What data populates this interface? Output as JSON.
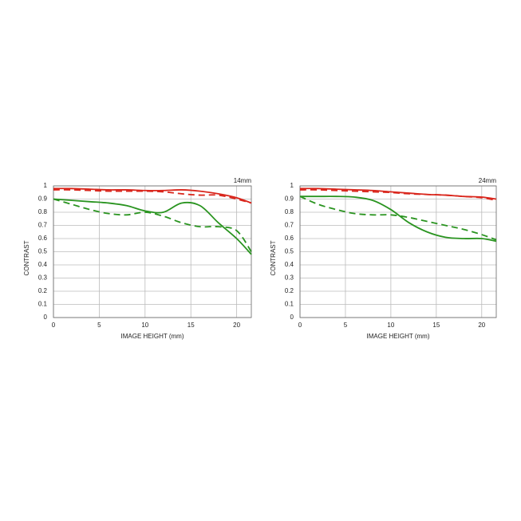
{
  "chart_data": [
    {
      "type": "line",
      "title": "14mm",
      "xlabel": "IMAGE HEIGHT (mm)",
      "ylabel": "CONTRAST",
      "x": [
        0,
        2,
        4,
        6,
        8,
        10,
        12,
        14,
        16,
        18,
        20,
        21.6
      ],
      "xlim": [
        0,
        21.6
      ],
      "xticks": [
        0,
        5,
        10,
        15,
        20
      ],
      "ylim": [
        0,
        1
      ],
      "yticks": [
        0,
        0.1,
        0.2,
        0.3,
        0.4,
        0.5,
        0.6,
        0.7,
        0.8,
        0.9,
        1
      ],
      "grid": true,
      "series": [
        {
          "color": "#d9261c",
          "style": "solid",
          "values": [
            0.98,
            0.98,
            0.975,
            0.97,
            0.97,
            0.965,
            0.965,
            0.97,
            0.96,
            0.94,
            0.91,
            0.87
          ]
        },
        {
          "color": "#d9261c",
          "style": "dashed",
          "values": [
            0.97,
            0.97,
            0.965,
            0.96,
            0.96,
            0.96,
            0.955,
            0.94,
            0.93,
            0.93,
            0.9,
            0.87
          ]
        },
        {
          "color": "#2a9420",
          "style": "solid",
          "values": [
            0.9,
            0.89,
            0.88,
            0.87,
            0.85,
            0.81,
            0.8,
            0.87,
            0.85,
            0.72,
            0.6,
            0.48
          ]
        },
        {
          "color": "#2a9420",
          "style": "dashed",
          "values": [
            0.9,
            0.86,
            0.82,
            0.79,
            0.78,
            0.8,
            0.77,
            0.72,
            0.69,
            0.69,
            0.66,
            0.5
          ]
        }
      ]
    },
    {
      "type": "line",
      "title": "24mm",
      "xlabel": "IMAGE HEIGHT (mm)",
      "ylabel": "CONTRAST",
      "x": [
        0,
        2,
        4,
        6,
        8,
        10,
        12,
        14,
        16,
        18,
        20,
        21.6
      ],
      "xlim": [
        0,
        21.6
      ],
      "xticks": [
        0,
        5,
        10,
        15,
        20
      ],
      "ylim": [
        0,
        1
      ],
      "yticks": [
        0,
        0.1,
        0.2,
        0.3,
        0.4,
        0.5,
        0.6,
        0.7,
        0.8,
        0.9,
        1
      ],
      "grid": true,
      "series": [
        {
          "color": "#d9261c",
          "style": "solid",
          "values": [
            0.98,
            0.98,
            0.975,
            0.97,
            0.965,
            0.955,
            0.945,
            0.935,
            0.93,
            0.92,
            0.915,
            0.9
          ]
        },
        {
          "color": "#d9261c",
          "style": "dashed",
          "values": [
            0.97,
            0.97,
            0.965,
            0.96,
            0.955,
            0.95,
            0.94,
            0.935,
            0.93,
            0.92,
            0.91,
            0.89
          ]
        },
        {
          "color": "#2a9420",
          "style": "solid",
          "values": [
            0.92,
            0.92,
            0.92,
            0.915,
            0.89,
            0.82,
            0.72,
            0.65,
            0.61,
            0.6,
            0.6,
            0.58
          ]
        },
        {
          "color": "#2a9420",
          "style": "dashed",
          "values": [
            0.92,
            0.86,
            0.82,
            0.79,
            0.78,
            0.78,
            0.76,
            0.73,
            0.7,
            0.67,
            0.63,
            0.59
          ]
        }
      ]
    }
  ]
}
